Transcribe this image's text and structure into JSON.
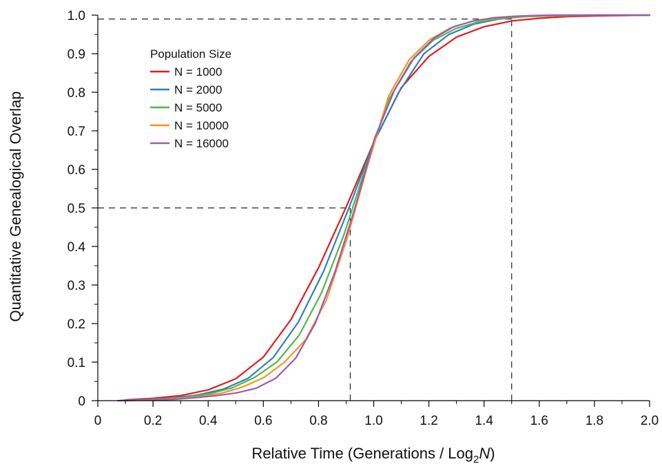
{
  "chart_data": {
    "type": "line",
    "title": "",
    "xlabel_main": "Relative Time (Generations / Log",
    "xlabel_sub": "2",
    "xlabel_italic": "N",
    "xlabel_close": ")",
    "ylabel": "Quantitative Genealogical Overlap",
    "xlim": [
      0,
      2.0
    ],
    "ylim": [
      0,
      1.0
    ],
    "x_ticks": [
      0,
      0.2,
      0.4,
      0.6,
      0.8,
      1.0,
      1.2,
      1.4,
      1.6,
      1.8,
      2.0
    ],
    "x_tick_labels": [
      "0",
      "0.2",
      "0.4",
      "0.6",
      "0.8",
      "1.0",
      "1.2",
      "1.4",
      "1.6",
      "1.8",
      "2.0"
    ],
    "y_ticks": [
      0,
      0.1,
      0.2,
      0.3,
      0.4,
      0.5,
      0.6,
      0.7,
      0.8,
      0.9,
      1.0
    ],
    "y_tick_labels": [
      "0",
      "0.1",
      "0.2",
      "0.3",
      "0.4",
      "0.5",
      "0.6",
      "0.7",
      "0.8",
      "0.9",
      "1.0"
    ],
    "legend": {
      "title": "Population Size",
      "placement": "top-left"
    },
    "reference_lines": [
      {
        "x": [
          0,
          0.915
        ],
        "y": [
          0.5,
          0.5
        ]
      },
      {
        "x": [
          0.915,
          0.915
        ],
        "y": [
          0,
          0.5
        ]
      },
      {
        "x": [
          0,
          1.5
        ],
        "y": [
          0.99,
          0.99
        ]
      },
      {
        "x": [
          1.5,
          1.5
        ],
        "y": [
          0,
          0.99
        ]
      }
    ],
    "series": [
      {
        "name": "N = 1000",
        "color": "#e31a1c",
        "x": [
          0.1,
          0.2,
          0.3,
          0.4,
          0.5,
          0.6,
          0.7,
          0.8,
          0.9,
          1.0,
          1.1,
          1.2,
          1.3,
          1.4,
          1.5,
          1.6,
          1.7,
          1.8,
          1.9,
          2.0
        ],
        "y": [
          0.002,
          0.006,
          0.013,
          0.028,
          0.057,
          0.113,
          0.21,
          0.345,
          0.502,
          0.67,
          0.812,
          0.893,
          0.943,
          0.97,
          0.985,
          0.992,
          0.996,
          0.998,
          0.999,
          1.0
        ]
      },
      {
        "name": "N = 2000",
        "color": "#2f7ebc",
        "x": [
          0.091,
          0.182,
          0.273,
          0.364,
          0.455,
          0.545,
          0.636,
          0.727,
          0.818,
          0.909,
          1.0,
          1.091,
          1.182,
          1.273,
          1.364,
          1.455,
          1.545,
          1.636,
          1.727,
          1.818,
          1.909,
          2.0
        ],
        "y": [
          0.001,
          0.003,
          0.007,
          0.015,
          0.03,
          0.058,
          0.112,
          0.204,
          0.335,
          0.498,
          0.67,
          0.8,
          0.9,
          0.95,
          0.977,
          0.99,
          0.996,
          0.998,
          0.999,
          1.0,
          1.0,
          1.0
        ]
      },
      {
        "name": "N = 5000",
        "color": "#4db848",
        "x": [
          0.081,
          0.162,
          0.243,
          0.324,
          0.405,
          0.486,
          0.568,
          0.649,
          0.73,
          0.811,
          0.892,
          0.973,
          1.054,
          1.135,
          1.216,
          1.297,
          1.378,
          1.459,
          1.541,
          1.622,
          1.703,
          1.784,
          1.865,
          1.946,
          2.0
        ],
        "y": [
          0.0,
          0.002,
          0.004,
          0.009,
          0.018,
          0.033,
          0.06,
          0.1,
          0.17,
          0.28,
          0.43,
          0.61,
          0.78,
          0.88,
          0.935,
          0.965,
          0.982,
          0.991,
          0.996,
          0.998,
          0.999,
          1.0,
          1.0,
          1.0,
          1.0
        ]
      },
      {
        "name": "N = 10000",
        "color": "#f7941d",
        "x": [
          0.075,
          0.151,
          0.226,
          0.301,
          0.376,
          0.452,
          0.527,
          0.602,
          0.677,
          0.753,
          0.828,
          0.903,
          0.978,
          1.054,
          1.129,
          1.204,
          1.279,
          1.355,
          1.43,
          1.505,
          1.58,
          1.656,
          1.731,
          1.806,
          1.881,
          1.957,
          2.0
        ],
        "y": [
          0.0,
          0.001,
          0.003,
          0.006,
          0.011,
          0.02,
          0.036,
          0.06,
          0.1,
          0.158,
          0.26,
          0.42,
          0.61,
          0.79,
          0.885,
          0.937,
          0.967,
          0.984,
          0.992,
          0.996,
          0.998,
          0.999,
          1.0,
          1.0,
          1.0,
          1.0,
          1.0
        ]
      },
      {
        "name": "N = 16000",
        "color": "#9b59b6",
        "x": [
          0.072,
          0.143,
          0.215,
          0.287,
          0.358,
          0.43,
          0.502,
          0.573,
          0.645,
          0.717,
          0.788,
          0.86,
          0.932,
          1.003,
          1.075,
          1.147,
          1.218,
          1.29,
          1.362,
          1.433,
          1.505,
          1.577,
          1.648,
          1.72,
          1.792,
          1.863,
          1.935,
          2.0
        ],
        "y": [
          0.0,
          0.001,
          0.002,
          0.004,
          0.008,
          0.013,
          0.02,
          0.032,
          0.058,
          0.11,
          0.2,
          0.335,
          0.5,
          0.68,
          0.805,
          0.89,
          0.94,
          0.97,
          0.985,
          0.993,
          0.997,
          0.999,
          1.0,
          1.0,
          1.0,
          1.0,
          1.0,
          1.0
        ]
      }
    ]
  }
}
